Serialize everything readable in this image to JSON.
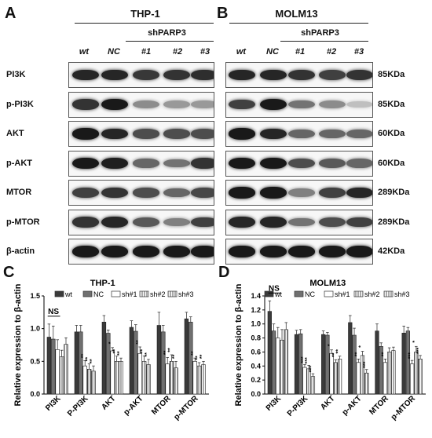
{
  "panels": {
    "A": "A",
    "B": "B",
    "C": "C",
    "D": "D"
  },
  "blots": {
    "left_title": "THP-1",
    "right_title": "MOLM13",
    "sh_label": "shPARP3",
    "lanes": [
      "wt",
      "NC",
      "#1",
      "#2",
      "#3"
    ],
    "rows": [
      {
        "label": "PI3K",
        "kda": "85KDa",
        "left_intensity": [
          0.85,
          0.85,
          0.78,
          0.8,
          0.82
        ],
        "right_intensity": [
          0.85,
          0.85,
          0.8,
          0.75,
          0.8
        ]
      },
      {
        "label": "p-PI3K",
        "kda": "85KDa",
        "left_intensity": [
          0.8,
          0.9,
          0.45,
          0.4,
          0.4
        ],
        "right_intensity": [
          0.75,
          0.9,
          0.55,
          0.45,
          0.25
        ]
      },
      {
        "label": "AKT",
        "kda": "60KDa",
        "left_intensity": [
          0.9,
          0.85,
          0.7,
          0.7,
          0.7
        ],
        "right_intensity": [
          0.9,
          0.85,
          0.6,
          0.6,
          0.6
        ]
      },
      {
        "label": "p-AKT",
        "kda": "60KDa",
        "left_intensity": [
          0.9,
          0.88,
          0.6,
          0.55,
          0.8
        ],
        "right_intensity": [
          0.9,
          0.9,
          0.7,
          0.65,
          0.6
        ]
      },
      {
        "label": "MTOR",
        "kda": "289KDa",
        "left_intensity": [
          0.75,
          0.8,
          0.7,
          0.6,
          0.72
        ],
        "right_intensity": [
          0.9,
          0.9,
          0.5,
          0.75,
          0.85
        ]
      },
      {
        "label": "p-MTOR",
        "kda": "289KDa",
        "left_intensity": [
          0.8,
          0.85,
          0.65,
          0.5,
          0.75
        ],
        "right_intensity": [
          0.85,
          0.85,
          0.55,
          0.7,
          0.75
        ]
      },
      {
        "label": "β-actin",
        "kda": "42KDa",
        "left_intensity": [
          0.9,
          0.9,
          0.9,
          0.9,
          0.9
        ],
        "right_intensity": [
          0.9,
          0.9,
          0.9,
          0.9,
          0.9
        ]
      }
    ]
  },
  "chart_data": [
    {
      "type": "bar",
      "title": "THP-1",
      "ylabel": "Relative expression to β-actin",
      "ylim": [
        0.0,
        1.5
      ],
      "yticks": [
        "0.0",
        "0.5",
        "1.0",
        "1.5"
      ],
      "categories": [
        "PI3K",
        "P-PI3K",
        "AKT",
        "p-AKT",
        "MTOR",
        "p-MTOR"
      ],
      "series": [
        {
          "name": "wt",
          "values": [
            0.87,
            0.95,
            1.1,
            1.02,
            1.05,
            1.15
          ],
          "errors": [
            0.2,
            0.1,
            0.1,
            0.1,
            0.2,
            0.1
          ]
        },
        {
          "name": "NC",
          "values": [
            0.84,
            0.95,
            0.93,
            0.96,
            0.95,
            1.1
          ],
          "errors": [
            0.2,
            0.1,
            0.05,
            0.1,
            0.1,
            0.08
          ]
        },
        {
          "name": "sh#1",
          "values": [
            0.68,
            0.43,
            0.66,
            0.62,
            0.46,
            0.5
          ],
          "errors": [
            0.15,
            0.08,
            0.05,
            0.1,
            0.1,
            0.05
          ]
        },
        {
          "name": "sh#2",
          "values": [
            0.57,
            0.38,
            0.5,
            0.5,
            0.5,
            0.43
          ],
          "errors": [
            0.1,
            0.08,
            0.08,
            0.08,
            0.1,
            0.05
          ]
        },
        {
          "name": "sh#3",
          "values": [
            0.76,
            0.35,
            0.5,
            0.45,
            0.4,
            0.45
          ],
          "errors": [
            0.1,
            0.08,
            0.05,
            0.08,
            0.1,
            0.05
          ]
        }
      ],
      "significance": [
        {
          "category": "PI3K",
          "text": "NS"
        },
        {
          "category": "P-PI3K",
          "marks": [
            "**",
            "**",
            "**"
          ]
        },
        {
          "category": "AKT",
          "marks": [
            "*",
            "**",
            "**"
          ]
        },
        {
          "category": "p-AKT",
          "marks": [
            "**",
            "**",
            "**"
          ]
        },
        {
          "category": "MTOR",
          "marks": [
            "**",
            "**",
            "**"
          ]
        },
        {
          "category": "p-MTOR",
          "marks": [
            "**",
            "**",
            "**"
          ]
        }
      ]
    },
    {
      "type": "bar",
      "title": "MOLM13",
      "ylabel": "Relative expression to β-actin",
      "ylim": [
        0.0,
        1.4
      ],
      "yticks": [
        "0.0",
        "0.2",
        "0.4",
        "0.6",
        "0.8",
        "1.0",
        "1.2",
        "1.4"
      ],
      "categories": [
        "PI3K",
        "P-PI3K",
        "AKT",
        "p-AKT",
        "MTOR",
        "p-MTOR"
      ],
      "series": [
        {
          "name": "wt",
          "values": [
            1.18,
            0.85,
            0.85,
            1.02,
            0.9,
            0.87
          ],
          "errors": [
            0.15,
            0.06,
            0.05,
            0.1,
            0.1,
            0.1
          ]
        },
        {
          "name": "NC",
          "values": [
            0.9,
            0.86,
            0.84,
            0.84,
            0.68,
            0.9
          ],
          "errors": [
            0.1,
            0.06,
            0.04,
            0.1,
            0.05,
            0.05
          ]
        },
        {
          "name": "sh#1",
          "values": [
            0.8,
            0.38,
            0.58,
            0.45,
            0.45,
            0.43
          ],
          "errors": [
            0.15,
            0.04,
            0.05,
            0.05,
            0.05,
            0.05
          ]
        },
        {
          "name": "sh#2",
          "values": [
            0.77,
            0.36,
            0.45,
            0.55,
            0.6,
            0.6
          ],
          "errors": [
            0.15,
            0.05,
            0.04,
            0.06,
            0.06,
            0.08
          ]
        },
        {
          "name": "sh#3",
          "values": [
            0.92,
            0.25,
            0.5,
            0.3,
            0.62,
            0.5
          ],
          "errors": [
            0.1,
            0.04,
            0.04,
            0.05,
            0.05,
            0.05
          ]
        }
      ],
      "significance": [
        {
          "category": "PI3K",
          "text": "NS"
        },
        {
          "category": "P-PI3K",
          "marks": [
            "***",
            "***",
            "***"
          ]
        },
        {
          "category": "AKT",
          "marks": [
            "*",
            "**",
            "**"
          ]
        },
        {
          "category": "p-AKT",
          "marks": [
            "**",
            "*",
            "***"
          ]
        },
        {
          "category": "MTOR",
          "marks": [
            "**",
            "",
            ""
          ]
        },
        {
          "category": "p-MTOR",
          "marks": [
            "***",
            "*",
            "***"
          ]
        }
      ]
    }
  ],
  "colors": {
    "wt": "#3a3a3a",
    "NC": "#707070",
    "sh1": "#ffffff",
    "sh2": "#c8c8c8",
    "sh3": "#a0a0a0"
  }
}
